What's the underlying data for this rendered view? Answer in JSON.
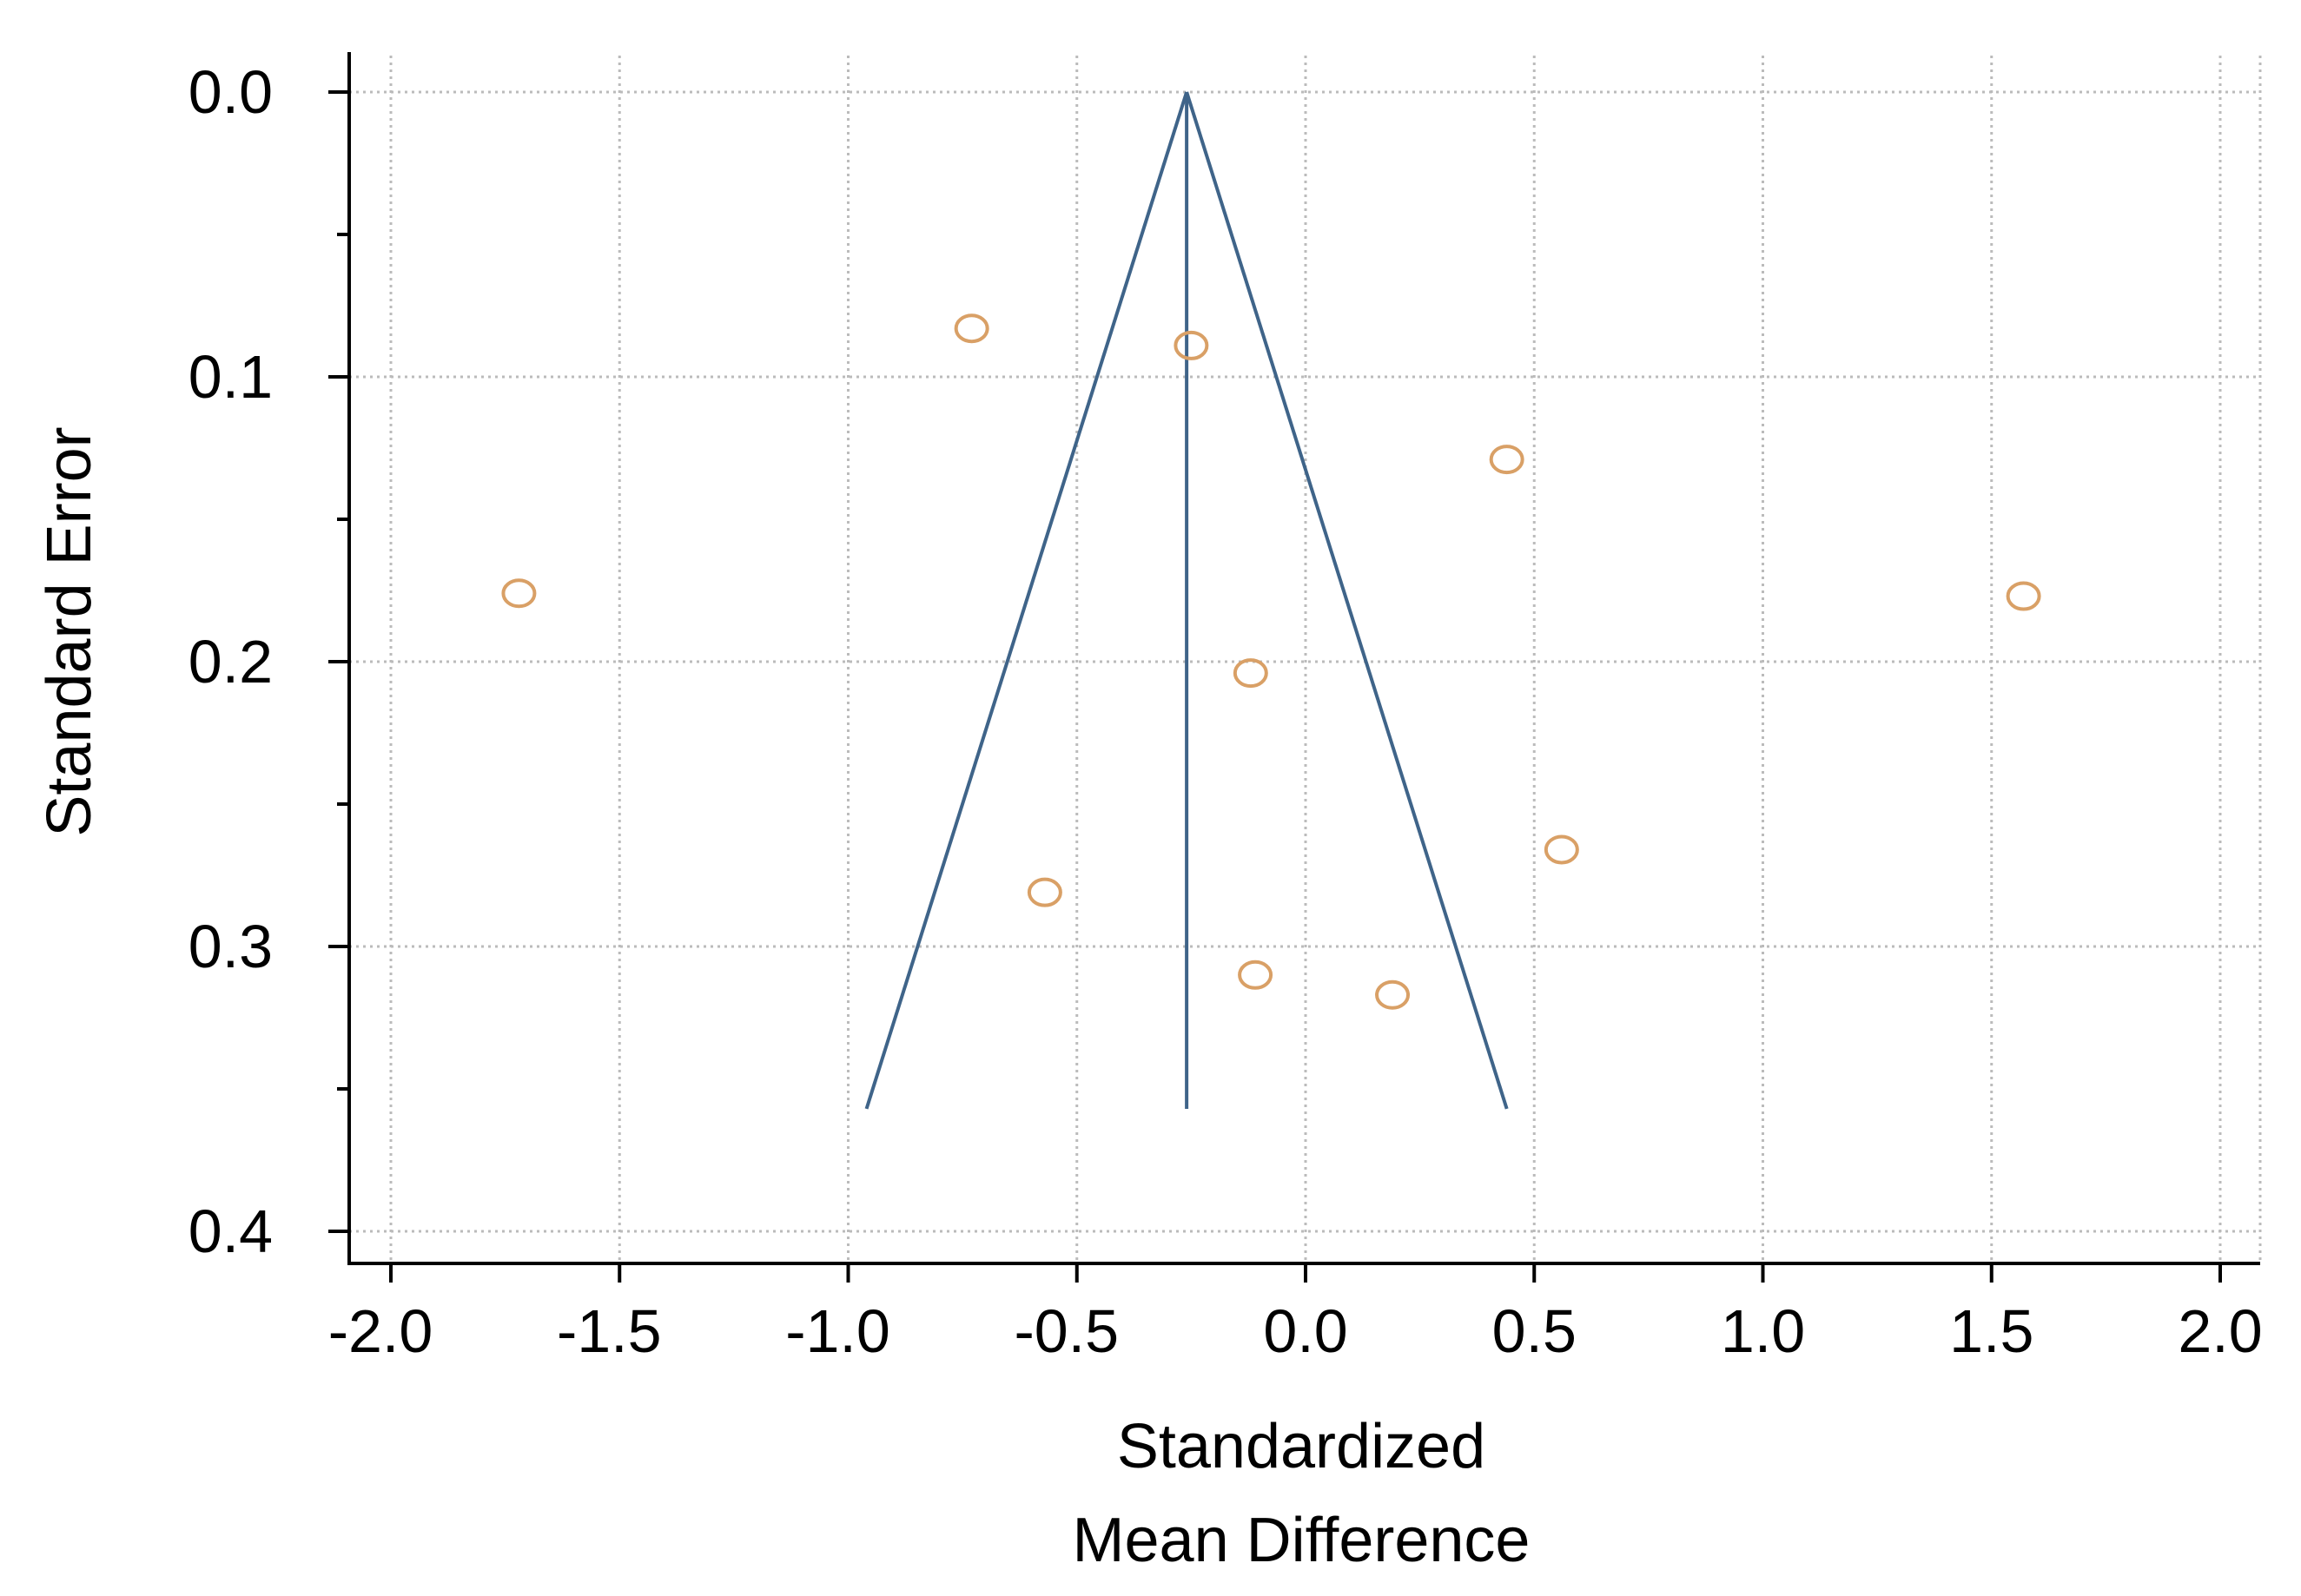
{
  "chart_data": {
    "type": "scatter",
    "subtype": "funnel-plot",
    "title": "",
    "xlabel": [
      "Standardized",
      "Mean Difference"
    ],
    "ylabel": "Standard Error",
    "xlim": [
      -2.0,
      2.0
    ],
    "ylim": [
      0.0,
      0.4
    ],
    "y_inverted": true,
    "x_ticks": [
      "-2.0",
      "-1.5",
      "-1.0",
      "-0.5",
      "0.0",
      "0.5",
      "1.0",
      "1.5",
      "2.0"
    ],
    "x_tick_values": [
      -2.0,
      -1.5,
      -1.0,
      -0.5,
      0.0,
      0.5,
      1.0,
      1.5,
      2.0
    ],
    "y_ticks": [
      "0.0",
      "0.1",
      "0.2",
      "0.3",
      "0.4"
    ],
    "y_tick_values": [
      0.0,
      0.1,
      0.2,
      0.3,
      0.4
    ],
    "grid": true,
    "points": [
      {
        "x": -0.73,
        "y": 0.083
      },
      {
        "x": -0.25,
        "y": 0.089
      },
      {
        "x": 0.44,
        "y": 0.129
      },
      {
        "x": -1.72,
        "y": 0.176
      },
      {
        "x": 1.57,
        "y": 0.177
      },
      {
        "x": -0.12,
        "y": 0.204
      },
      {
        "x": 0.56,
        "y": 0.266
      },
      {
        "x": -0.57,
        "y": 0.281
      },
      {
        "x": -0.11,
        "y": 0.31
      },
      {
        "x": 0.19,
        "y": 0.317
      }
    ],
    "pooled_estimate": -0.26,
    "funnel": {
      "apex": {
        "x": -0.26,
        "y": 0.0
      },
      "base_y": 0.357,
      "base_left_x": -0.96,
      "base_right_x": 0.44
    },
    "colors": {
      "points": "#d9a066",
      "funnel": "#3f6489",
      "grid": "#bbbbbb",
      "axis": "#000000"
    }
  }
}
